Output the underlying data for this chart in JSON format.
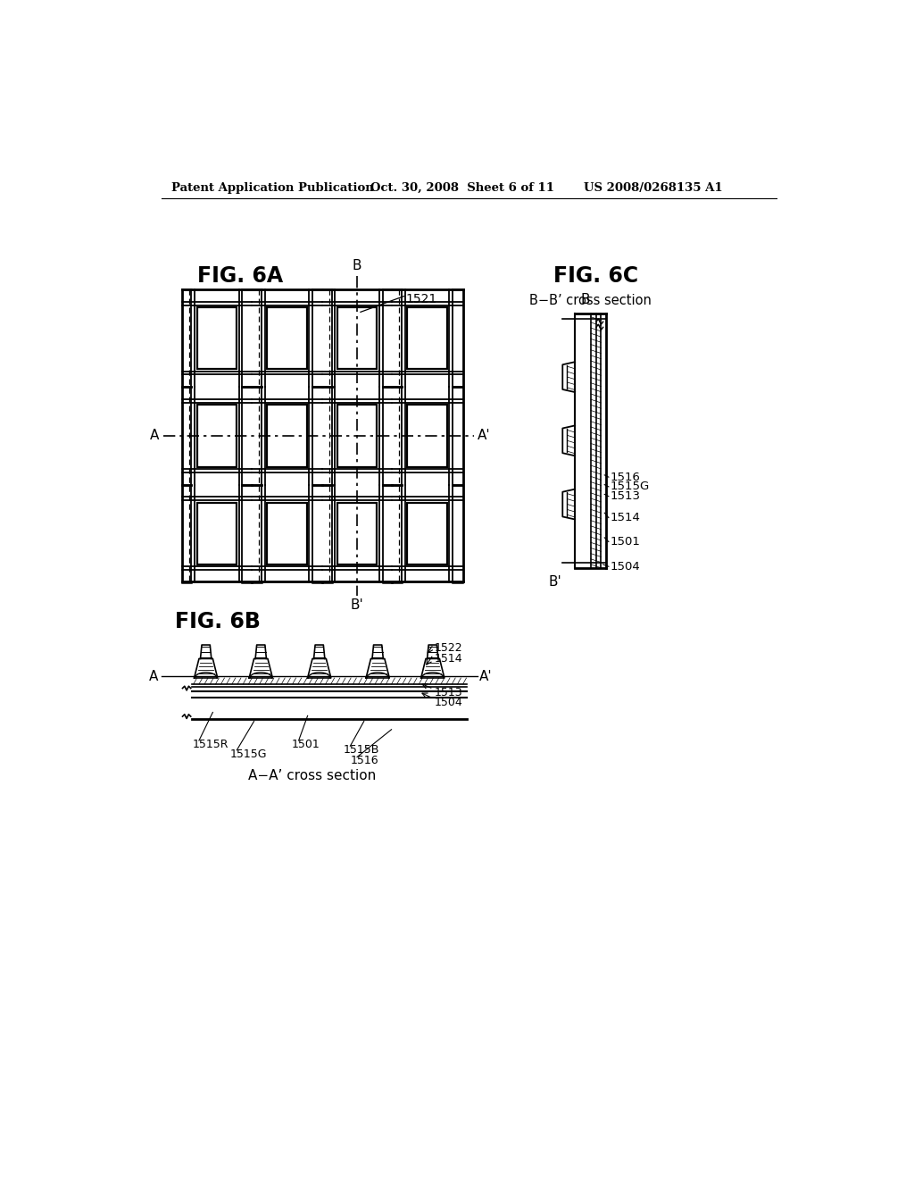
{
  "bg_color": "#ffffff",
  "text_color": "#000000",
  "header_left": "Patent Application Publication",
  "header_mid": "Oct. 30, 2008  Sheet 6 of 11",
  "header_right": "US 2008/0268135 A1",
  "fig6a_label": "FIG. 6A",
  "fig6b_label": "FIG. 6B",
  "fig6c_label": "FIG. 6C",
  "fig6c_subtitle": "B−B’ cross section",
  "fig6b_subtitle": "A−A’ cross section",
  "ref_1521": "1521",
  "ref_1522": "1522",
  "ref_1514": "1514",
  "ref_1516": "1516",
  "ref_1515G_c": "1515G",
  "ref_1513_c": "1513",
  "ref_1514_c": "1514",
  "ref_1501_c": "1501",
  "ref_1504_c": "1504",
  "ref_1515R": "1515R",
  "ref_1515G": "1515G",
  "ref_1515B": "1515B",
  "ref_1501": "1501",
  "ref_1513": "1513",
  "ref_1504": "1504",
  "ref_1516_b": "1516"
}
